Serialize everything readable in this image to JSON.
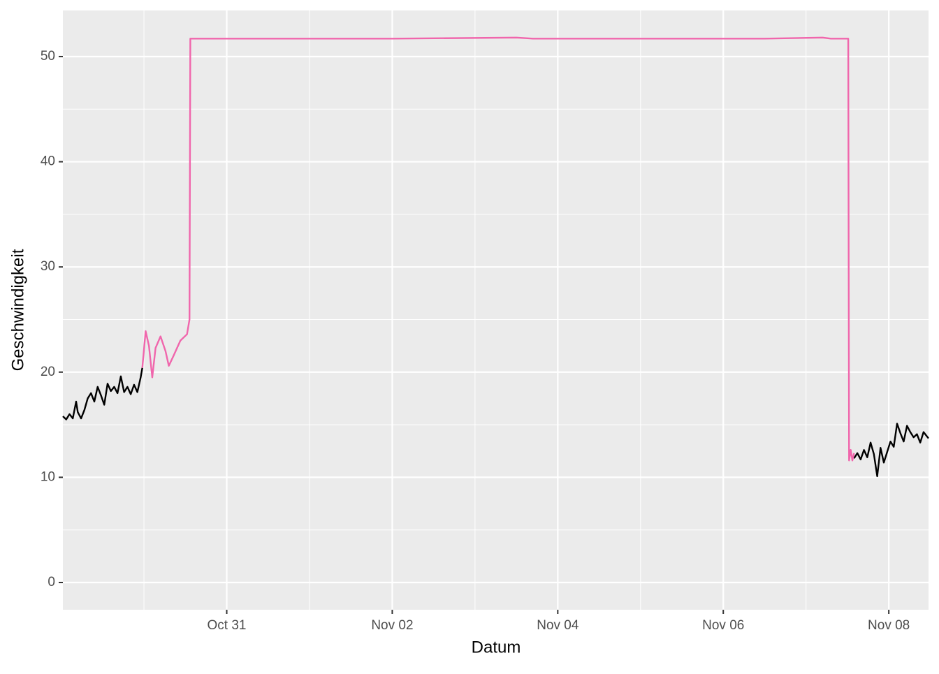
{
  "chart_data": {
    "type": "line",
    "x_label": "Datum",
    "y_label": "Geschwindigkeit",
    "xlim": [
      29.02,
      39.48
    ],
    "ylim": [
      -2.59,
      54.38
    ],
    "xticks": [
      {
        "value": 31,
        "label": "Oct 31"
      },
      {
        "value": 33,
        "label": "Nov 02"
      },
      {
        "value": 35,
        "label": "Nov 04"
      },
      {
        "value": 37,
        "label": "Nov 06"
      },
      {
        "value": 39,
        "label": "Nov 08"
      }
    ],
    "xminor": [
      30,
      32,
      34,
      36,
      38
    ],
    "yticks": [
      0,
      10,
      20,
      30,
      40,
      50
    ],
    "yminor": [
      5,
      15,
      25,
      35,
      45
    ],
    "grid": true,
    "series": [
      {
        "color": "#000000",
        "x": [
          29.02,
          29.06,
          29.1,
          29.14,
          29.18,
          29.2,
          29.24,
          29.28,
          29.32,
          29.36,
          29.4,
          29.44,
          29.48,
          29.52,
          29.56,
          29.6,
          29.64,
          29.68,
          29.72,
          29.76,
          29.8,
          29.84,
          29.88,
          29.92,
          29.96,
          29.98,
          30.0,
          38.58,
          38.62,
          38.66,
          38.7,
          38.74,
          38.78,
          38.82,
          38.86,
          38.9,
          38.94,
          38.98,
          39.02,
          39.06,
          39.1,
          39.14,
          39.18,
          39.22,
          39.26,
          39.3,
          39.34,
          39.38,
          39.42,
          39.48
        ],
        "values": [
          15.8,
          15.5,
          16.0,
          15.6,
          17.2,
          16.2,
          15.6,
          16.4,
          17.5,
          18.0,
          17.2,
          18.6,
          17.8,
          16.9,
          18.9,
          18.2,
          18.6,
          18.0,
          19.6,
          18.1,
          18.6,
          17.9,
          18.8,
          18.1,
          19.5,
          20.4,
          null,
          11.8,
          12.3,
          11.7,
          12.6,
          11.9,
          13.3,
          12.2,
          10.1,
          12.8,
          11.4,
          12.4,
          13.4,
          12.9,
          15.1,
          14.2,
          13.4,
          14.9,
          14.3,
          13.8,
          14.1,
          13.3,
          14.3,
          13.7
        ]
      },
      {
        "color": "#f066ac",
        "x": [
          29.98,
          30.02,
          30.06,
          30.1,
          30.14,
          30.2,
          30.26,
          30.3,
          30.36,
          30.4,
          30.44,
          30.52,
          30.55,
          30.56,
          31.0,
          33.0,
          34.5,
          34.7,
          35.5,
          37.5,
          38.2,
          38.3,
          38.51,
          38.52,
          38.54,
          38.56,
          38.58
        ],
        "values": [
          20.4,
          23.9,
          22.5,
          19.5,
          22.3,
          23.4,
          22.0,
          20.6,
          21.6,
          22.3,
          23.0,
          23.6,
          25.0,
          51.7,
          51.7,
          51.7,
          51.8,
          51.7,
          51.7,
          51.7,
          51.8,
          51.7,
          51.7,
          11.6,
          12.6,
          11.6,
          12.3
        ]
      }
    ]
  }
}
